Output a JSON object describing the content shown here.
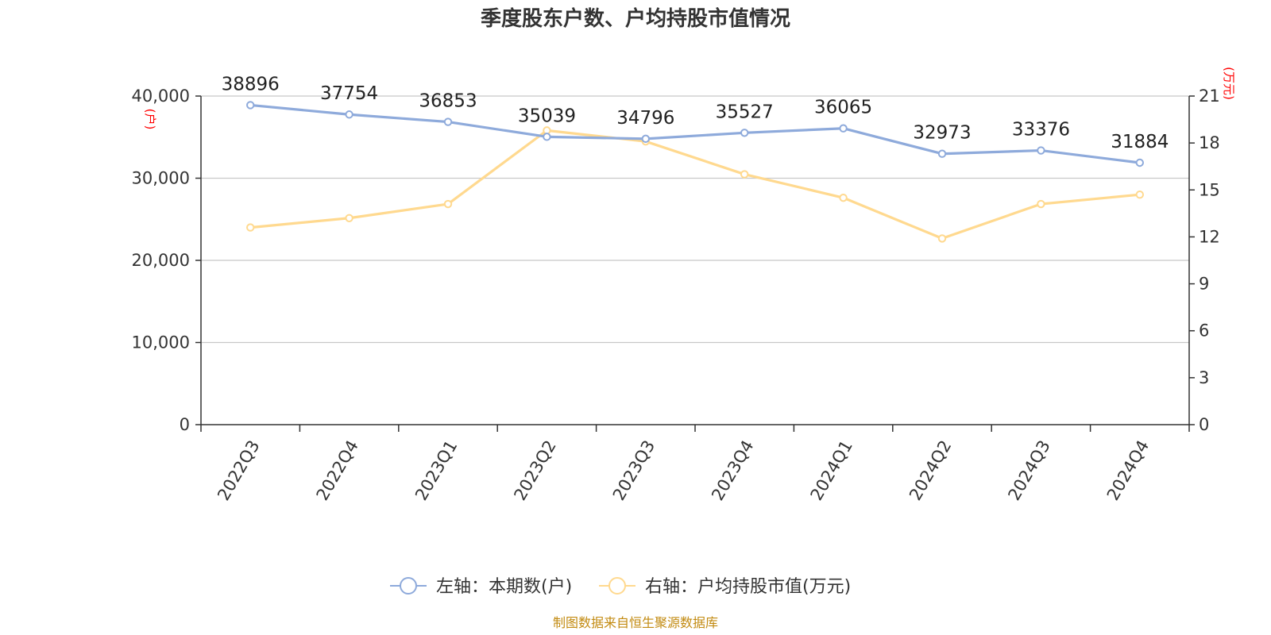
{
  "chart_data": {
    "type": "line",
    "title": "季度股东户数、户均持股市值情况",
    "categories": [
      "2022Q3",
      "2022Q4",
      "2023Q1",
      "2023Q2",
      "2023Q3",
      "2023Q4",
      "2024Q1",
      "2024Q2",
      "2024Q3",
      "2024Q4"
    ],
    "left_axis": {
      "unit": "(户)",
      "ylim": [
        0,
        40000
      ],
      "ticks": [
        "0",
        "10,000",
        "20,000",
        "30,000",
        "40,000"
      ],
      "tick_values": [
        0,
        10000,
        20000,
        30000,
        40000
      ]
    },
    "right_axis": {
      "unit": "(万元)",
      "ylim": [
        0,
        21
      ],
      "ticks": [
        "0",
        "3",
        "6",
        "9",
        "12",
        "15",
        "18",
        "21"
      ],
      "tick_values": [
        0,
        3,
        6,
        9,
        12,
        15,
        18,
        21
      ]
    },
    "series": [
      {
        "name": "左轴：本期数(户)",
        "axis": "left",
        "color": "#8eaadb",
        "values": [
          38896,
          37754,
          36853,
          35039,
          34796,
          35527,
          36065,
          32973,
          33376,
          31884
        ],
        "labels": [
          "38896",
          "37754",
          "36853",
          "35039",
          "34796",
          "35527",
          "36065",
          "32973",
          "33376",
          "31884"
        ]
      },
      {
        "name": "右轴：户均持股市值(万元)",
        "axis": "right",
        "color": "#ffd98f",
        "values": [
          12.6,
          13.2,
          14.1,
          18.8,
          18.1,
          16.0,
          14.5,
          11.9,
          14.1,
          14.7
        ]
      }
    ],
    "grid": true,
    "legend_position": "bottom"
  },
  "source": "制图数据来自恒生聚源数据库"
}
